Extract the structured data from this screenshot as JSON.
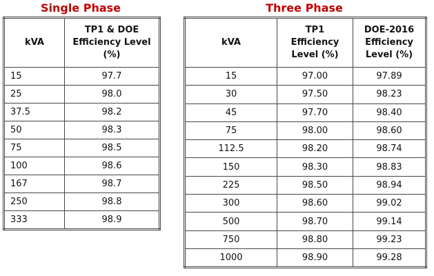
{
  "single_phase": {
    "title": "Single Phase",
    "headers": [
      "kVA",
      "TP1 & DOE Efficiency Level (%)"
    ],
    "rows": [
      [
        "15",
        "97.7"
      ],
      [
        "25",
        "98.0"
      ],
      [
        "37.5",
        "98.2"
      ],
      [
        "50",
        "98.3"
      ],
      [
        "75",
        "98.5"
      ],
      [
        "100",
        "98.6"
      ],
      [
        "167",
        "98.7"
      ],
      [
        "250",
        "98.8"
      ],
      [
        "333",
        "98.9"
      ]
    ]
  },
  "three_phase": {
    "title": "Three Phase",
    "headers": [
      "kVA",
      "TP1 Efficiency Level (%)",
      "DOE-2016 Efficiency Level (%)"
    ],
    "rows": [
      [
        "15",
        "97.00",
        "97.89"
      ],
      [
        "30",
        "97.50",
        "98.23"
      ],
      [
        "45",
        "97.70",
        "98.40"
      ],
      [
        "75",
        "98.00",
        "98.60"
      ],
      [
        "112.5",
        "98.20",
        "98.74"
      ],
      [
        "150",
        "98.30",
        "98.83"
      ],
      [
        "225",
        "98.50",
        "98.94"
      ],
      [
        "300",
        "98.60",
        "99.02"
      ],
      [
        "500",
        "98.70",
        "99.14"
      ],
      [
        "750",
        "98.80",
        "99.23"
      ],
      [
        "1000",
        "98.90",
        "99.28"
      ]
    ]
  }
}
